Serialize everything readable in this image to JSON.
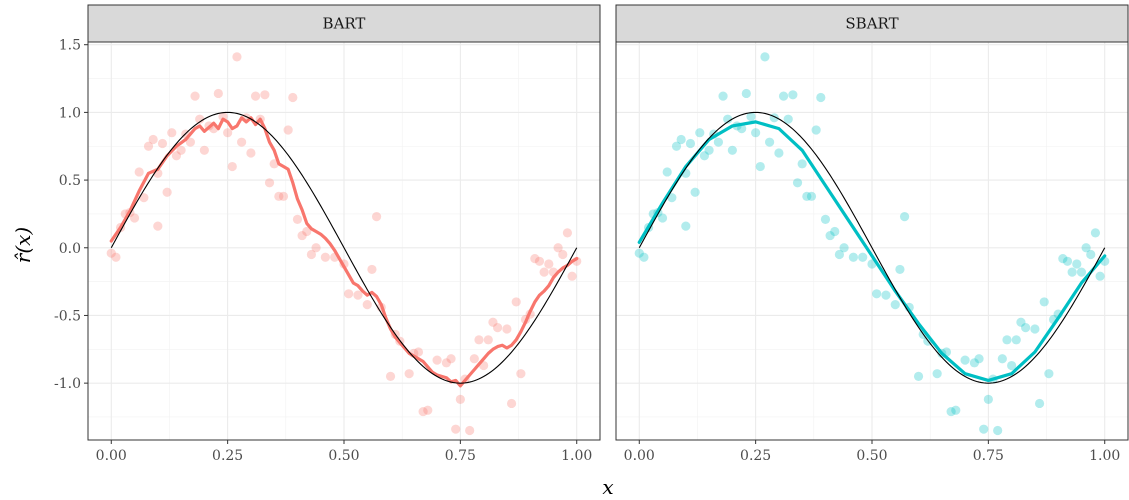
{
  "chart_data": {
    "type": "scatter",
    "layout": "faceted, two panels side by side with shared y axis",
    "xlabel": "x",
    "ylabel": "r̂(x)",
    "xlim": [
      -0.05,
      1.05
    ],
    "ylim": [
      -1.42,
      1.52
    ],
    "xticks": [
      0,
      0.25,
      0.5,
      0.75,
      1
    ],
    "xtick_labels": [
      "0.00",
      "0.25",
      "0.50",
      "0.75",
      "1.00"
    ],
    "yticks": [
      -1,
      -0.5,
      0,
      0.5,
      1,
      1.5
    ],
    "ytick_labels": [
      "-1.0",
      "-0.5",
      "0.0",
      "0.5",
      "1.0",
      "1.5"
    ],
    "grid": true,
    "truth": {
      "function": "sin(2*pi*x)",
      "color": "#000000",
      "x": [
        0,
        1
      ]
    },
    "observations": {
      "x": [
        0.0,
        0.01,
        0.02,
        0.03,
        0.04,
        0.05,
        0.06,
        0.07,
        0.08,
        0.09,
        0.1,
        0.1,
        0.11,
        0.12,
        0.13,
        0.14,
        0.15,
        0.16,
        0.17,
        0.18,
        0.19,
        0.2,
        0.21,
        0.22,
        0.23,
        0.24,
        0.25,
        0.26,
        0.27,
        0.28,
        0.29,
        0.3,
        0.31,
        0.32,
        0.33,
        0.34,
        0.35,
        0.36,
        0.37,
        0.38,
        0.39,
        0.4,
        0.41,
        0.42,
        0.44,
        0.46,
        0.48,
        0.5,
        0.51,
        0.53,
        0.55,
        0.56,
        0.57,
        0.58,
        0.6,
        0.61,
        0.62,
        0.64,
        0.65,
        0.66,
        0.67,
        0.68,
        0.7,
        0.72,
        0.73,
        0.74,
        0.75,
        0.76,
        0.77,
        0.78,
        0.79,
        0.8,
        0.81,
        0.82,
        0.83,
        0.85,
        0.86,
        0.87,
        0.88,
        0.89,
        0.9,
        0.91,
        0.92,
        0.93,
        0.94,
        0.95,
        0.96,
        0.97,
        0.98,
        0.99,
        1.0,
        0.43
      ],
      "y": [
        -0.04,
        -0.07,
        0.15,
        0.25,
        0.26,
        0.22,
        0.56,
        0.37,
        0.75,
        0.8,
        0.16,
        0.55,
        0.77,
        0.41,
        0.85,
        0.68,
        0.72,
        0.84,
        0.78,
        1.12,
        0.95,
        0.72,
        0.9,
        0.88,
        1.14,
        0.97,
        0.85,
        0.6,
        1.41,
        0.78,
        0.96,
        0.7,
        1.12,
        0.95,
        1.13,
        0.48,
        0.62,
        0.38,
        0.38,
        0.87,
        1.11,
        0.21,
        0.09,
        0.12,
        0.0,
        -0.07,
        -0.07,
        -0.12,
        -0.34,
        -0.35,
        -0.42,
        -0.16,
        0.23,
        -0.44,
        -0.95,
        -0.64,
        -0.69,
        -0.93,
        -0.78,
        -0.77,
        -1.21,
        -1.2,
        -0.83,
        -0.85,
        -0.82,
        -1.34,
        -1.12,
        -0.97,
        -1.35,
        -0.82,
        -0.68,
        -0.87,
        -0.68,
        -0.55,
        -0.59,
        -0.6,
        -1.15,
        -0.4,
        -0.93,
        -0.53,
        -0.49,
        -0.08,
        -0.1,
        -0.18,
        -0.12,
        -0.18,
        0.0,
        -0.05,
        0.11,
        -0.21,
        -0.1,
        -0.05
      ]
    },
    "panels": [
      {
        "strip_label": "BART",
        "color": "#f8766d",
        "fit": {
          "x": [
            0.0,
            0.02,
            0.04,
            0.06,
            0.08,
            0.1,
            0.12,
            0.14,
            0.16,
            0.18,
            0.19,
            0.2,
            0.21,
            0.22,
            0.23,
            0.24,
            0.25,
            0.26,
            0.27,
            0.28,
            0.29,
            0.3,
            0.31,
            0.32,
            0.33,
            0.34,
            0.35,
            0.36,
            0.37,
            0.38,
            0.39,
            0.4,
            0.41,
            0.42,
            0.43,
            0.44,
            0.45,
            0.46,
            0.47,
            0.48,
            0.49,
            0.5,
            0.51,
            0.52,
            0.53,
            0.54,
            0.55,
            0.56,
            0.57,
            0.58,
            0.59,
            0.6,
            0.61,
            0.62,
            0.63,
            0.64,
            0.65,
            0.66,
            0.67,
            0.68,
            0.69,
            0.7,
            0.71,
            0.72,
            0.73,
            0.74,
            0.75,
            0.76,
            0.77,
            0.78,
            0.79,
            0.8,
            0.81,
            0.82,
            0.83,
            0.84,
            0.85,
            0.86,
            0.87,
            0.88,
            0.89,
            0.9,
            0.91,
            0.92,
            0.93,
            0.94,
            0.95,
            0.96,
            0.97,
            0.98,
            0.99,
            1.0
          ],
          "y": [
            0.05,
            0.15,
            0.27,
            0.42,
            0.55,
            0.58,
            0.68,
            0.75,
            0.8,
            0.88,
            0.9,
            0.86,
            0.89,
            0.92,
            0.88,
            0.95,
            0.93,
            0.88,
            0.9,
            0.96,
            0.93,
            0.96,
            0.91,
            0.95,
            0.88,
            0.78,
            0.72,
            0.62,
            0.6,
            0.58,
            0.48,
            0.36,
            0.28,
            0.18,
            0.14,
            0.12,
            0.1,
            0.07,
            0.03,
            -0.02,
            -0.08,
            -0.14,
            -0.2,
            -0.26,
            -0.28,
            -0.32,
            -0.35,
            -0.33,
            -0.36,
            -0.42,
            -0.52,
            -0.6,
            -0.66,
            -0.7,
            -0.74,
            -0.78,
            -0.8,
            -0.82,
            -0.84,
            -0.88,
            -0.92,
            -0.94,
            -0.95,
            -0.96,
            -0.99,
            -0.98,
            -1.02,
            -0.98,
            -0.94,
            -0.9,
            -0.86,
            -0.82,
            -0.78,
            -0.75,
            -0.73,
            -0.72,
            -0.74,
            -0.72,
            -0.68,
            -0.62,
            -0.55,
            -0.47,
            -0.4,
            -0.35,
            -0.32,
            -0.28,
            -0.22,
            -0.18,
            -0.15,
            -0.13,
            -0.1,
            -0.08
          ]
        }
      },
      {
        "strip_label": "SBART",
        "color": "#00bfc4",
        "fit": {
          "x": [
            0.0,
            0.05,
            0.1,
            0.15,
            0.2,
            0.25,
            0.3,
            0.35,
            0.4,
            0.45,
            0.5,
            0.55,
            0.6,
            0.65,
            0.7,
            0.75,
            0.8,
            0.85,
            0.9,
            0.95,
            1.0
          ],
          "y": [
            0.04,
            0.33,
            0.6,
            0.8,
            0.9,
            0.93,
            0.88,
            0.72,
            0.46,
            0.2,
            -0.06,
            -0.32,
            -0.56,
            -0.78,
            -0.93,
            -0.98,
            -0.93,
            -0.77,
            -0.52,
            -0.26,
            -0.06
          ]
        }
      }
    ]
  }
}
